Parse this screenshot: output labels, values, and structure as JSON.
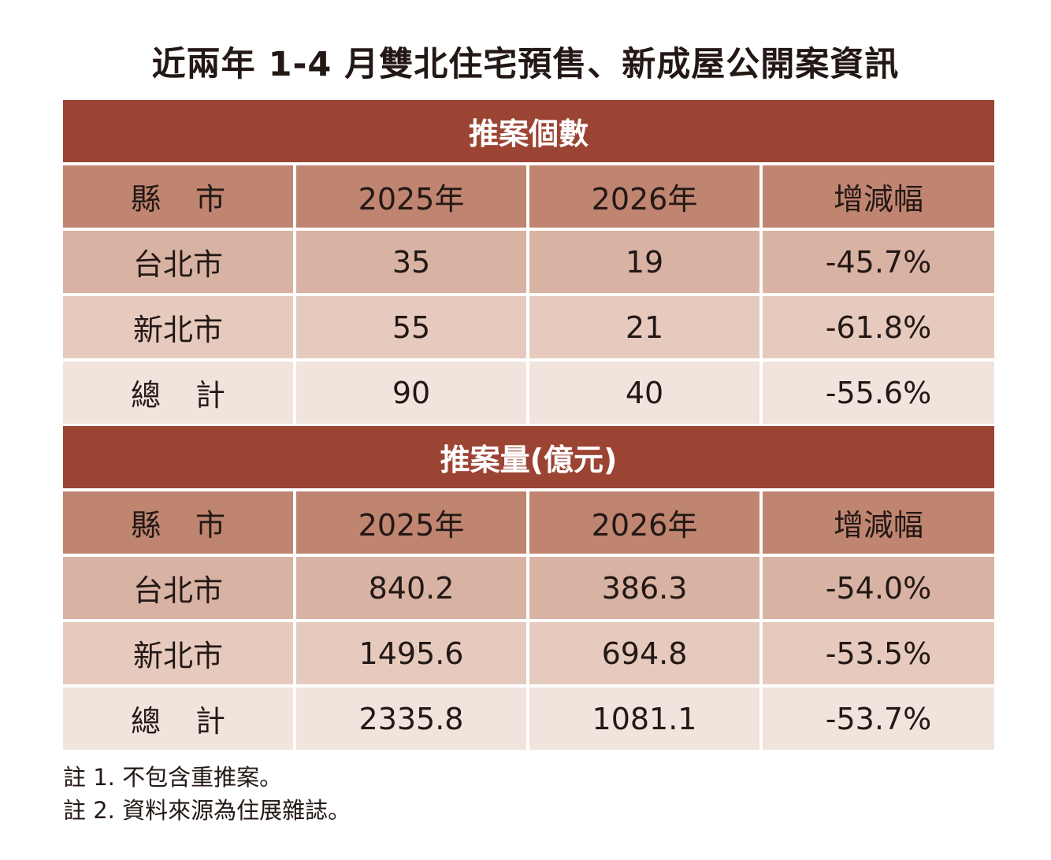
{
  "title": "近兩年 1-4 月雙北住宅預售、新成屋公開案資訊",
  "tables": [
    {
      "header": "推案個數",
      "columns": [
        "縣市",
        "2025年",
        "2026年",
        "增減幅"
      ],
      "rows": [
        [
          "台北市",
          "35",
          "19",
          "-45.7%"
        ],
        [
          "新北市",
          "55",
          "21",
          "-61.8%"
        ],
        [
          "總計",
          "90",
          "40",
          "-55.6%"
        ]
      ]
    },
    {
      "header": "推案量(億元)",
      "columns": [
        "縣市",
        "2025年",
        "2026年",
        "增減幅"
      ],
      "rows": [
        [
          "台北市",
          "840.2",
          "386.3",
          "-54.0%"
        ],
        [
          "新北市",
          "1495.6",
          "694.8",
          "-53.5%"
        ],
        [
          "總計",
          "2335.8",
          "1081.1",
          "-53.7%"
        ]
      ]
    }
  ],
  "notes": [
    "註 1. 不包含重推案。",
    "註 2. 資料來源為住展雜誌。"
  ],
  "colors": {
    "section_header": "#9c4434",
    "column_header": "#bf8570",
    "row1": "#d8b3a4",
    "row2": "#e6cabe",
    "row3": "#f1e4dd"
  }
}
